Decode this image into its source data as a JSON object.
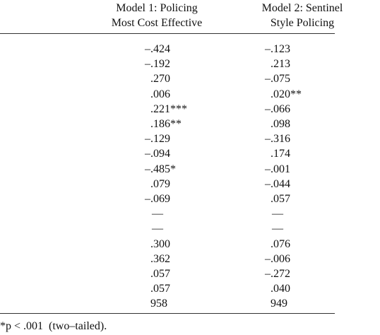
{
  "header": {
    "columns": [
      [
        "Model 1: Policing",
        "Most Cost Effective"
      ],
      [
        "Model 2: Sentinel",
        "Style Policing"
      ]
    ]
  },
  "table": {
    "rows": [
      [
        "–.424",
        "–.123"
      ],
      [
        "–.192",
        ".213"
      ],
      [
        ".270",
        "–.075"
      ],
      [
        ".006",
        ".020**"
      ],
      [
        ".221***",
        "–.066"
      ],
      [
        ".186**",
        ".098"
      ],
      [
        "–.129",
        "–.316"
      ],
      [
        "–.094",
        ".174"
      ],
      [
        "–.485*",
        "–.001"
      ],
      [
        ".079",
        "–.044"
      ],
      [
        "–.069",
        ".057"
      ],
      [
        "—",
        "—"
      ],
      [
        "—",
        "—"
      ],
      [
        ".300",
        ".076"
      ],
      [
        ".362",
        "–.006"
      ],
      [
        ".057",
        "–.272"
      ],
      [
        ".057",
        ".040"
      ],
      [
        "958",
        "949"
      ]
    ]
  },
  "footnote": "*p < .001  (two–tailed)."
}
